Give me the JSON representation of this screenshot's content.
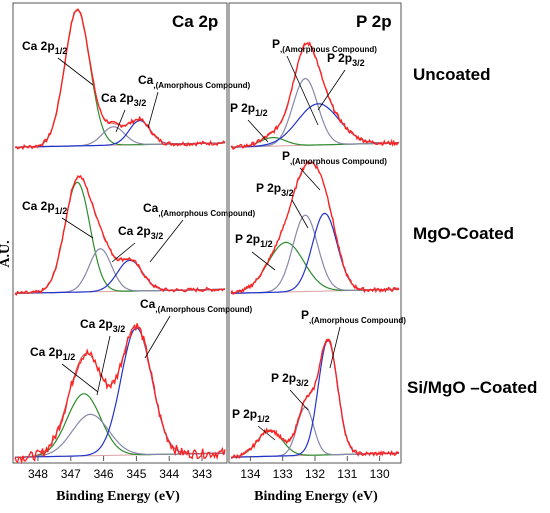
{
  "ylabel": "A.U.",
  "panels_title": {
    "ca": "Ca 2p",
    "p": "P 2p"
  },
  "xlabel": {
    "ca": "Binding Energy (eV)",
    "p": "Binding Energy (eV)"
  },
  "rows": [
    {
      "label": "Uncoated"
    },
    {
      "label": "MgO-Coated"
    },
    {
      "label": "Si/MgO –Coated"
    }
  ],
  "ca_ticks": [
    "348",
    "347",
    "346",
    "345",
    "344",
    "343"
  ],
  "p_ticks": [
    "134",
    "133",
    "132",
    "131",
    "130"
  ],
  "annotations": {
    "ca": [
      {
        "main": "Ca 2p",
        "sub": "1/2",
        "tail": ""
      },
      {
        "main": "Ca 2p",
        "sub": "3/2",
        "tail": ""
      },
      {
        "main": "Ca",
        "sub": ",(Amorphous Compound)",
        "tail": ""
      }
    ],
    "p": [
      {
        "main": "P 2p",
        "sub": "1/2",
        "tail": ""
      },
      {
        "main": "P 2p",
        "sub": "3/2",
        "tail": ""
      },
      {
        "main": "P",
        "sub": ",(Amorphous Compound)",
        "tail": ""
      }
    ]
  },
  "colors": {
    "raw": "#ff2020",
    "envelope": "#c06060",
    "background": "#d8a0a0",
    "comp_1_2": "#2e8b2e",
    "comp_3_2": "#8888aa",
    "comp_amorph": "#2233cc",
    "frame": "#555555"
  },
  "chart_data": [
    {
      "type": "line",
      "title": "Ca 2p",
      "row": "Uncoated",
      "xlabel": "Binding Energy (eV)",
      "xlim": [
        348.7,
        342.3
      ],
      "reversed_x": true,
      "series": [
        {
          "name": "Ca 2p1/2",
          "center": 346.8,
          "fwhm": 0.9,
          "height": 0.96
        },
        {
          "name": "Ca 2p3/2",
          "center": 345.7,
          "fwhm": 0.8,
          "height": 0.13
        },
        {
          "name": "Ca,(Amorphous Compound)",
          "center": 344.9,
          "fwhm": 0.75,
          "height": 0.17
        }
      ]
    },
    {
      "type": "line",
      "title": "Ca 2p",
      "row": "MgO-Coated",
      "xlabel": "Binding Energy (eV)",
      "xlim": [
        348.7,
        342.3
      ],
      "reversed_x": true,
      "series": [
        {
          "name": "Ca 2p1/2",
          "center": 346.8,
          "fwhm": 0.9,
          "height": 0.82
        },
        {
          "name": "Ca 2p3/2",
          "center": 346.1,
          "fwhm": 0.8,
          "height": 0.32
        },
        {
          "name": "Ca,(Amorphous Compound)",
          "center": 345.2,
          "fwhm": 0.9,
          "height": 0.23
        }
      ]
    },
    {
      "type": "line",
      "title": "Ca 2p",
      "row": "Si/MgO –Coated",
      "xlabel": "Binding Energy (eV)",
      "xlim": [
        348.7,
        342.3
      ],
      "reversed_x": true,
      "series": [
        {
          "name": "Ca 2p1/2",
          "center": 346.6,
          "fwhm": 1.2,
          "height": 0.45
        },
        {
          "name": "Ca 2p3/2",
          "center": 346.4,
          "fwhm": 1.3,
          "height": 0.3
        },
        {
          "name": "Ca,(Amorphous Compound)",
          "center": 345.0,
          "fwhm": 1.1,
          "height": 0.92
        }
      ]
    },
    {
      "type": "line",
      "title": "P 2p",
      "row": "Uncoated",
      "xlabel": "Binding Energy (eV)",
      "xlim": [
        134.6,
        129.4
      ],
      "reversed_x": true,
      "series": [
        {
          "name": "P 2p1/2",
          "center": 133.3,
          "fwhm": 0.9,
          "height": 0.06
        },
        {
          "name": "P 2p3/2",
          "center": 132.3,
          "fwhm": 0.9,
          "height": 0.47
        },
        {
          "name": "P,(Amorphous Compound)",
          "center": 131.9,
          "fwhm": 1.5,
          "height": 0.29
        }
      ]
    },
    {
      "type": "line",
      "title": "P 2p",
      "row": "MgO-Coated",
      "xlabel": "Binding Energy (eV)",
      "xlim": [
        134.6,
        129.4
      ],
      "reversed_x": true,
      "series": [
        {
          "name": "P 2p1/2",
          "center": 132.9,
          "fwhm": 1.3,
          "height": 0.37
        },
        {
          "name": "P 2p3/2",
          "center": 132.3,
          "fwhm": 0.9,
          "height": 0.57
        },
        {
          "name": "P,(Amorphous Compound)",
          "center": 131.7,
          "fwhm": 0.9,
          "height": 0.58
        }
      ]
    },
    {
      "type": "line",
      "title": "P 2p",
      "row": "Si/MgO –Coated",
      "xlabel": "Binding Energy (eV)",
      "xlim": [
        134.6,
        129.4
      ],
      "reversed_x": true,
      "series": [
        {
          "name": "P 2p1/2",
          "center": 133.4,
          "fwhm": 0.9,
          "height": 0.19
        },
        {
          "name": "P 2p3/2",
          "center": 132.3,
          "fwhm": 0.6,
          "height": 0.35
        },
        {
          "name": "P,(Amorphous Compound)",
          "center": 131.6,
          "fwhm": 0.7,
          "height": 0.83
        }
      ]
    }
  ]
}
